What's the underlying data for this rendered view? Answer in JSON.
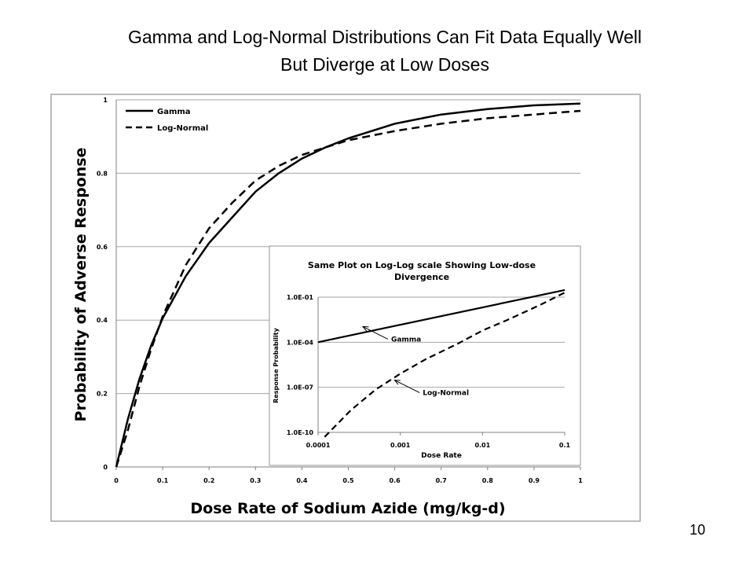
{
  "slide": {
    "title_line1": "Gamma and Log-Normal Distributions Can Fit Data Equally Well",
    "title_line2": "But Diverge at Low Doses",
    "page_number": "10"
  },
  "chart_data": [
    {
      "type": "line",
      "title": "",
      "xlabel": "Dose Rate of Sodium Azide (mg/kg-d)",
      "ylabel": "Probability of Adverse Response",
      "xlim": [
        0,
        1
      ],
      "ylim": [
        0,
        1
      ],
      "x_ticks": [
        "0",
        "0.1",
        "0.2",
        "0.3",
        "0.4",
        "0.5",
        "0.6",
        "0.7",
        "0.8",
        "0.9",
        "1"
      ],
      "y_ticks": [
        "0",
        "0.2",
        "0.4",
        "0.6",
        "0.8",
        "1"
      ],
      "grid": "horizontal",
      "legend_position": "top-left",
      "series": [
        {
          "name": "Gamma",
          "style": "solid",
          "color": "#000000",
          "x": [
            0,
            0.025,
            0.05,
            0.075,
            0.1,
            0.15,
            0.2,
            0.25,
            0.3,
            0.35,
            0.4,
            0.45,
            0.5,
            0.6,
            0.7,
            0.8,
            0.9,
            1.0
          ],
          "y": [
            0,
            0.13,
            0.24,
            0.33,
            0.405,
            0.52,
            0.61,
            0.68,
            0.75,
            0.8,
            0.84,
            0.87,
            0.895,
            0.935,
            0.96,
            0.975,
            0.985,
            0.99
          ]
        },
        {
          "name": "Log-Normal",
          "style": "dashed",
          "color": "#000000",
          "x": [
            0,
            0.025,
            0.05,
            0.075,
            0.1,
            0.15,
            0.2,
            0.25,
            0.3,
            0.35,
            0.4,
            0.45,
            0.5,
            0.6,
            0.7,
            0.8,
            0.9,
            1.0
          ],
          "y": [
            0,
            0.1,
            0.22,
            0.32,
            0.41,
            0.55,
            0.65,
            0.72,
            0.78,
            0.82,
            0.85,
            0.87,
            0.89,
            0.915,
            0.935,
            0.95,
            0.96,
            0.97
          ]
        }
      ]
    },
    {
      "type": "line",
      "title": "Same Plot on Log-Log scale Showing Low-dose Divergence",
      "title_line1": "Same Plot on Log-Log scale Showing Low-dose",
      "title_line2": "Divergence",
      "xlabel": "Dose Rate",
      "ylabel": "Response Probability",
      "x_scale": "log",
      "y_scale": "log",
      "xlim": [
        0.0001,
        0.1
      ],
      "ylim": [
        1e-10,
        1
      ],
      "x_ticks": [
        "0.0001",
        "0.001",
        "0.01",
        "0.1"
      ],
      "y_ticks": [
        "1.0E-10",
        "1.0E-07",
        "1.0E-04",
        "1.0E-01"
      ],
      "y_tick_values": [
        1e-10,
        1e-07,
        0.0001,
        0.1
      ],
      "grid": "horizontal",
      "series": [
        {
          "name": "Gamma",
          "style": "solid",
          "x": [
            0.0001,
            0.1
          ],
          "y": [
            0.0001,
            0.3
          ]
        },
        {
          "name": "Log-Normal",
          "style": "dashed",
          "x": [
            0.00012,
            0.00025,
            0.0005,
            0.001,
            0.002,
            0.005,
            0.01,
            0.02,
            0.05,
            0.1
          ],
          "y": [
            5e-11,
            3e-09,
            7e-08,
            8e-07,
            7e-06,
            8e-05,
            0.0006,
            0.003,
            0.03,
            0.2
          ]
        }
      ],
      "annotations": [
        {
          "text": "Gamma",
          "arrow_to": {
            "x": 0.00035,
            "y": 0.0011
          }
        },
        {
          "text": "Log-Normal",
          "arrow_to": {
            "x": 0.00085,
            "y": 3e-07
          }
        }
      ]
    }
  ]
}
